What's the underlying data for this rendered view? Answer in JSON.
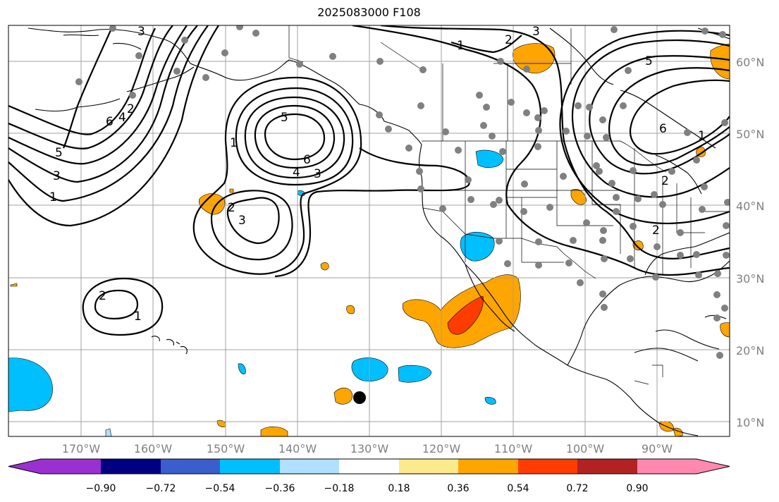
{
  "title": "2025083000 F108",
  "longitude_labels": [
    "170°W",
    "160°W",
    "150°W",
    "140°W",
    "130°W",
    "120°W",
    "110°W",
    "100°W",
    "90°W"
  ],
  "latitude_labels": [
    "60°N",
    "50°N",
    "40°N",
    "30°N",
    "20°N",
    "10°N"
  ],
  "colorbar": {
    "ticks": [
      "−0.90",
      "−0.72",
      "−0.54",
      "−0.36",
      "−0.18",
      "0.18",
      "0.36",
      "0.54",
      "0.72",
      "0.90"
    ],
    "colors": [
      "#9b30d0",
      "#000080",
      "#3a5fcd",
      "#00bfff",
      "#b0e0ff",
      "#ffffff",
      "#fdea8c",
      "#ffa500",
      "#ff3c00",
      "#b22222",
      "#ff88b0"
    ]
  },
  "contour_labels": [
    "1",
    "2",
    "3",
    "4",
    "5",
    "6"
  ],
  "colors": {
    "grid": "#a0a0a0",
    "tick_text": "#808080",
    "station_dot": "#808080",
    "marker": "#000000"
  }
}
